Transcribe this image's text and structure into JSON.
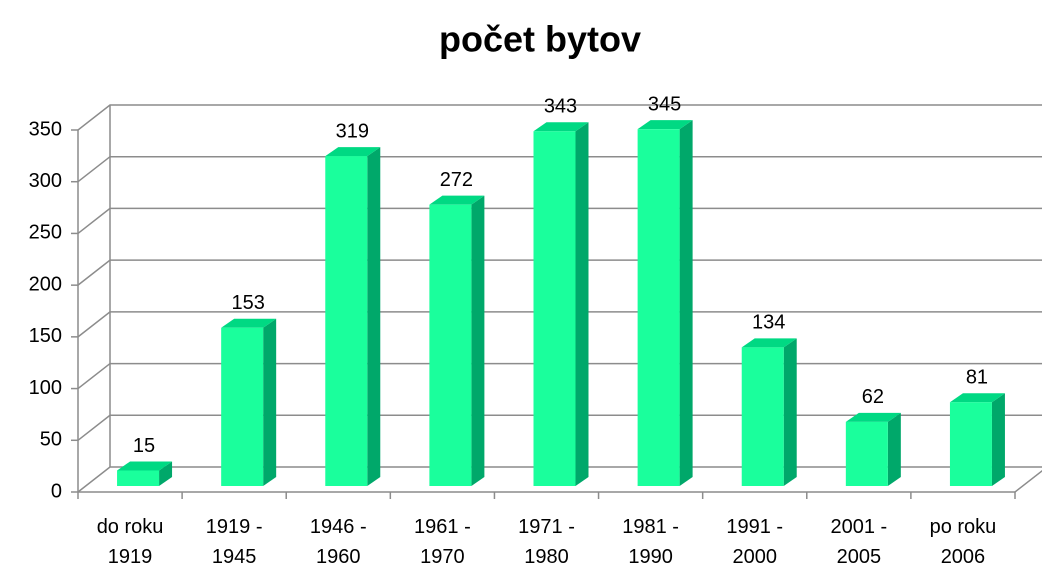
{
  "chart_data": {
    "type": "bar3d",
    "title": "počet bytov",
    "categories": [
      "do roku 1919",
      "1919 - 1945",
      "1946 - 1960",
      "1961 - 1970",
      "1971 - 1980",
      "1981 - 1990",
      "1991 - 2000",
      "2001 - 2005",
      "po roku 2006"
    ],
    "values": [
      15,
      153,
      319,
      272,
      343,
      345,
      134,
      62,
      81
    ],
    "color": "#1aff9c",
    "ylim": [
      0,
      350
    ],
    "yticks": [
      0,
      50,
      100,
      150,
      200,
      250,
      300,
      350
    ],
    "grid": true
  }
}
